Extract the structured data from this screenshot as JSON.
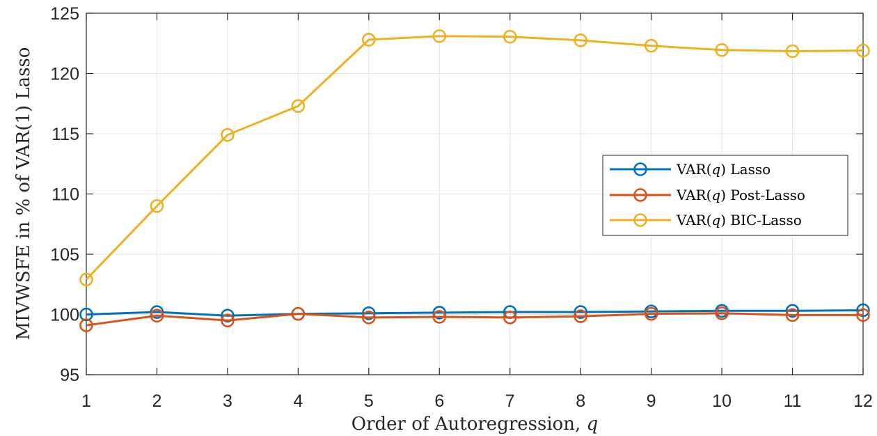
{
  "chart_data": {
    "type": "line",
    "xlabel": "Order of Autoregression, ",
    "xlabel_var": "q",
    "ylabel": "MIVWSFE in % of VAR(1) Lasso",
    "xlim": [
      1,
      12
    ],
    "ylim": [
      95,
      125
    ],
    "x_ticks": [
      "1",
      "2",
      "3",
      "4",
      "5",
      "6",
      "7",
      "8",
      "9",
      "10",
      "11",
      "12"
    ],
    "y_ticks": [
      "95",
      "100",
      "105",
      "110",
      "115",
      "120",
      "125"
    ],
    "grid": true,
    "legend_position": "right",
    "x": [
      1,
      2,
      3,
      4,
      5,
      6,
      7,
      8,
      9,
      10,
      11,
      12
    ],
    "series": [
      {
        "name": "VAR(q) Lasso",
        "label_prefix": "VAR(",
        "label_var": "q",
        "label_suffix": ") Lasso",
        "color": "#0072BD",
        "values": [
          100.0,
          100.2,
          99.9,
          100.05,
          100.1,
          100.15,
          100.2,
          100.2,
          100.25,
          100.3,
          100.3,
          100.35
        ]
      },
      {
        "name": "VAR(q) Post-Lasso",
        "label_prefix": "VAR(",
        "label_var": "q",
        "label_suffix": ") Post-Lasso",
        "color": "#D95319",
        "values": [
          99.1,
          99.9,
          99.5,
          100.05,
          99.75,
          99.8,
          99.75,
          99.85,
          100.05,
          100.1,
          99.95,
          99.95
        ]
      },
      {
        "name": "VAR(q) BIC-Lasso",
        "label_prefix": "VAR(",
        "label_var": "q",
        "label_suffix": ") BIC-Lasso",
        "color": "#EDB120",
        "values": [
          102.9,
          109.0,
          114.9,
          117.3,
          122.8,
          123.1,
          123.05,
          122.75,
          122.3,
          121.95,
          121.85,
          121.9
        ]
      }
    ]
  }
}
